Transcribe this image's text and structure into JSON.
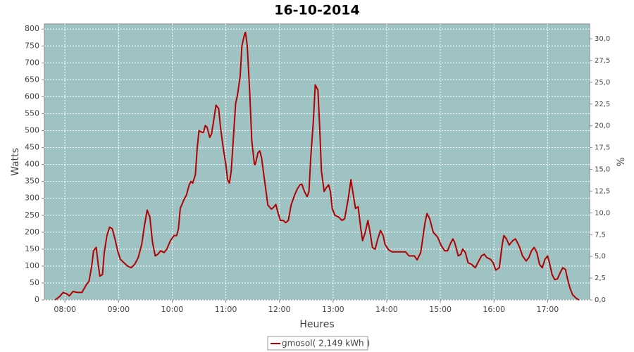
{
  "chart_data": {
    "type": "line",
    "title": "16-10-2014",
    "x_label": "Heures",
    "y_label": "Watts",
    "y2_label": "%",
    "xlim": [
      "07:37",
      "17:47"
    ],
    "xticks": [
      "08:00",
      "09:00",
      "10:00",
      "11:00",
      "12:00",
      "13:00",
      "14:00",
      "15:00",
      "16:00",
      "17:00"
    ],
    "ylim": [
      0,
      815
    ],
    "yticks": [
      0,
      50,
      100,
      150,
      200,
      250,
      300,
      350,
      400,
      450,
      500,
      550,
      600,
      650,
      700,
      750,
      800
    ],
    "y2lim": [
      0,
      31.7
    ],
    "y2ticks": [
      {
        "value": 0,
        "label": "0,0"
      },
      {
        "value": 2.5,
        "label": "2,5"
      },
      {
        "value": 5,
        "label": "5,0"
      },
      {
        "value": 7.5,
        "label": "7,5"
      },
      {
        "value": 10,
        "label": "10,0"
      },
      {
        "value": 12.5,
        "label": "12,5"
      },
      {
        "value": 15,
        "label": "15,0"
      },
      {
        "value": 17.5,
        "label": "17,5"
      },
      {
        "value": 20,
        "label": "20,0"
      },
      {
        "value": 22.5,
        "label": "22,5"
      },
      {
        "value": 25,
        "label": "25,0"
      },
      {
        "value": 27.5,
        "label": "27,5"
      },
      {
        "value": 30,
        "label": "30,0"
      }
    ],
    "grid": true,
    "background": "#9fc3c3",
    "x": [
      "07:49",
      "07:54",
      "07:58",
      "08:02",
      "08:05",
      "08:09",
      "08:14",
      "08:19",
      "08:24",
      "08:27",
      "08:30",
      "08:32",
      "08:35",
      "08:37",
      "08:39",
      "08:42",
      "08:44",
      "08:47",
      "08:50",
      "08:53",
      "08:56",
      "08:59",
      "09:02",
      "09:06",
      "09:10",
      "09:14",
      "09:18",
      "09:22",
      "09:26",
      "09:29",
      "09:32",
      "09:35",
      "09:38",
      "09:41",
      "09:44",
      "09:47",
      "09:51",
      "09:54",
      "09:58",
      "10:02",
      "10:05",
      "10:07",
      "10:09",
      "10:13",
      "10:16",
      "10:19",
      "10:21",
      "10:23",
      "10:26",
      "10:28",
      "10:30",
      "10:33",
      "10:35",
      "10:37",
      "10:39",
      "10:42",
      "10:44",
      "10:47",
      "10:49",
      "10:52",
      "10:54",
      "10:57",
      "11:00",
      "11:02",
      "11:04",
      "11:06",
      "11:09",
      "11:11",
      "11:13",
      "11:16",
      "11:18",
      "11:21",
      "11:22",
      "11:24",
      "11:27",
      "11:29",
      "11:32",
      "11:33",
      "11:36",
      "11:38",
      "11:40",
      "11:43",
      "11:45",
      "11:47",
      "11:51",
      "11:54",
      "11:56",
      "11:58",
      "12:01",
      "12:04",
      "12:07",
      "12:10",
      "12:13",
      "12:17",
      "12:20",
      "12:23",
      "12:25",
      "12:28",
      "12:31",
      "12:33",
      "12:35",
      "12:38",
      "12:40",
      "12:43",
      "12:45",
      "12:47",
      "12:50",
      "12:52",
      "12:55",
      "12:57",
      "12:59",
      "13:02",
      "13:06",
      "13:10",
      "13:13",
      "13:17",
      "13:20",
      "13:22",
      "13:25",
      "13:28",
      "13:31",
      "13:33",
      "13:36",
      "13:39",
      "13:41",
      "13:44",
      "13:47",
      "13:50",
      "13:53",
      "13:56",
      "13:58",
      "14:02",
      "14:06",
      "14:21",
      "14:25",
      "14:31",
      "14:34",
      "14:38",
      "14:43",
      "14:45",
      "14:48",
      "14:52",
      "14:57",
      "15:01",
      "15:05",
      "15:08",
      "15:11",
      "15:14",
      "15:16",
      "15:20",
      "15:23",
      "15:25",
      "15:28",
      "15:31",
      "15:35",
      "15:39",
      "15:42",
      "15:46",
      "15:49",
      "15:52",
      "15:56",
      "15:59",
      "16:02",
      "16:06",
      "16:09",
      "16:11",
      "16:14",
      "16:17",
      "16:21",
      "16:24",
      "16:28",
      "16:32",
      "16:36",
      "16:39",
      "16:42",
      "16:45",
      "16:48",
      "16:51",
      "16:54",
      "16:57",
      "17:00",
      "17:02",
      "17:05",
      "17:08",
      "17:11",
      "17:14",
      "17:17",
      "17:20",
      "17:22",
      "17:25",
      "17:28",
      "17:32",
      "17:35"
    ],
    "series": [
      {
        "name": "gmosol( 2,149 kWh )",
        "color": "#b30000",
        "values": [
          0,
          10,
          22,
          18,
          12,
          25,
          22,
          22,
          45,
          55,
          100,
          145,
          155,
          110,
          70,
          75,
          140,
          190,
          215,
          210,
          180,
          145,
          120,
          110,
          100,
          95,
          105,
          125,
          165,
          220,
          265,
          245,
          170,
          130,
          135,
          145,
          140,
          150,
          175,
          190,
          190,
          210,
          270,
          295,
          310,
          340,
          350,
          345,
          370,
          450,
          500,
          495,
          495,
          515,
          510,
          480,
          490,
          540,
          575,
          565,
          510,
          450,
          400,
          355,
          345,
          380,
          500,
          580,
          605,
          660,
          750,
          785,
          790,
          750,
          600,
          470,
          400,
          400,
          435,
          440,
          420,
          360,
          320,
          280,
          268,
          275,
          282,
          260,
          235,
          235,
          228,
          235,
          280,
          310,
          328,
          340,
          342,
          320,
          305,
          320,
          420,
          530,
          635,
          620,
          510,
          380,
          320,
          330,
          340,
          320,
          270,
          250,
          245,
          235,
          240,
          300,
          355,
          320,
          270,
          275,
          210,
          175,
          200,
          235,
          205,
          155,
          150,
          180,
          205,
          190,
          165,
          148,
          142,
          142,
          130,
          130,
          118,
          140,
          230,
          255,
          240,
          200,
          185,
          160,
          145,
          145,
          165,
          180,
          170,
          130,
          135,
          150,
          140,
          110,
          105,
          95,
          110,
          130,
          135,
          125,
          120,
          110,
          88,
          95,
          160,
          190,
          180,
          162,
          175,
          180,
          160,
          130,
          115,
          125,
          145,
          155,
          140,
          105,
          95,
          120,
          130,
          110,
          75,
          60,
          62,
          80,
          95,
          90,
          65,
          35,
          15,
          5,
          0
        ]
      }
    ]
  }
}
